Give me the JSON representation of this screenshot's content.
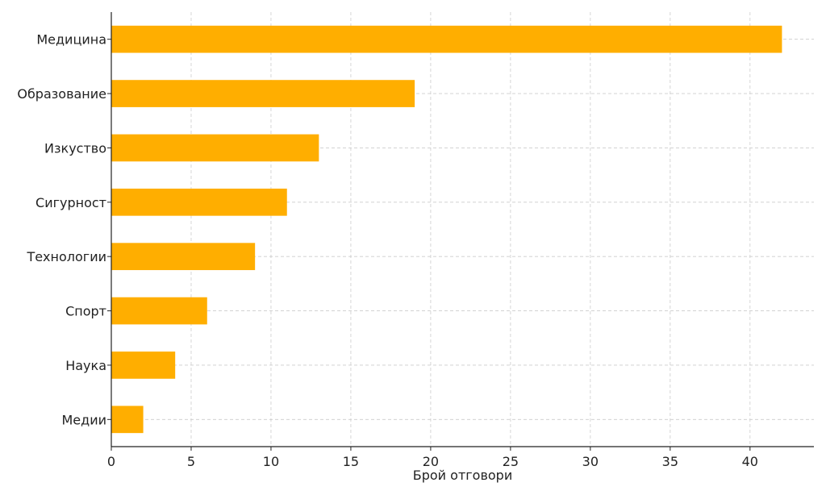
{
  "chart_data": {
    "type": "bar",
    "orientation": "horizontal",
    "title": "",
    "xlabel": "Брой отговори",
    "ylabel": "",
    "categories": [
      "Медицина",
      "Образование",
      "Изкуство",
      "Сигурност",
      "Технологии",
      "Спорт",
      "Наука",
      "Медии"
    ],
    "values": [
      42,
      19,
      13,
      11,
      9,
      6,
      4,
      2
    ],
    "xlim": [
      0,
      44
    ],
    "xticks": [
      "0",
      "5",
      "10",
      "15",
      "20",
      "25",
      "30",
      "35",
      "40"
    ],
    "grid": true,
    "grid_style": "dashed",
    "legend": "none",
    "bar_color": "#FFAE00",
    "axis_color": "#222222",
    "grid_color": "#cccccc"
  }
}
